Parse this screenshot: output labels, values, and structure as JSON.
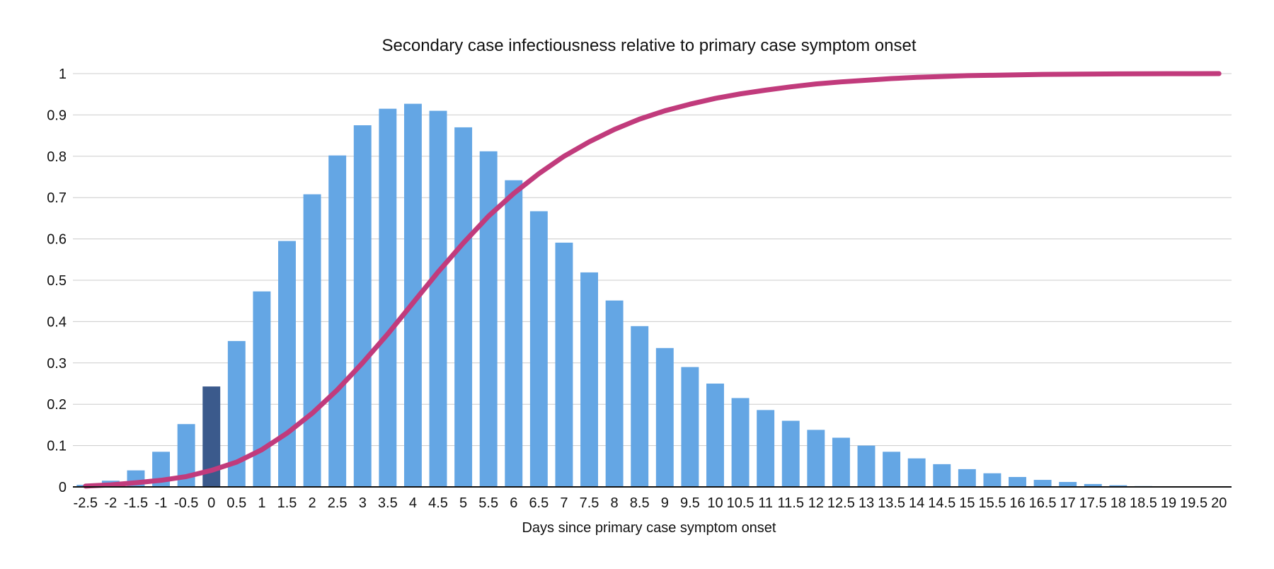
{
  "chart_data": {
    "type": "bar",
    "title": "Secondary case infectiousness relative to primary case symptom onset",
    "xlabel": "Days since primary case symptom onset",
    "ylabel": "",
    "ylim": [
      0,
      1
    ],
    "yticks": [
      0,
      0.1,
      0.2,
      0.3,
      0.4,
      0.5,
      0.6,
      0.7,
      0.8,
      0.9,
      1
    ],
    "ytick_labels": [
      "0",
      "0.1",
      "0.2",
      "0.3",
      "0.4",
      "0.5",
      "0.6",
      "0.7",
      "0.8",
      "0.9",
      "1"
    ],
    "grid": true,
    "legend": "none",
    "categories": [
      "-2.5",
      "-2",
      "-1.5",
      "-1",
      "-0.5",
      "0",
      "0.5",
      "1",
      "1.5",
      "2",
      "2.5",
      "3",
      "3.5",
      "4",
      "4.5",
      "5",
      "5.5",
      "6",
      "6.5",
      "7",
      "7.5",
      "8",
      "8.5",
      "9",
      "9.5",
      "10",
      "10.5",
      "11",
      "11.5",
      "12",
      "12.5",
      "13",
      "13.5",
      "14",
      "14.5",
      "15",
      "15.5",
      "16",
      "16.5",
      "17",
      "17.5",
      "18",
      "18.5",
      "19",
      "19.5",
      "20"
    ],
    "series": [
      {
        "kind": "bar",
        "color": "#64a6e4",
        "highlight_color": "#3b5a8c",
        "highlight_category": "0",
        "values": [
          0.005,
          0.015,
          0.04,
          0.085,
          0.152,
          0.243,
          0.353,
          0.473,
          0.595,
          0.708,
          0.802,
          0.875,
          0.915,
          0.927,
          0.91,
          0.87,
          0.812,
          0.742,
          0.667,
          0.591,
          0.519,
          0.451,
          0.389,
          0.336,
          0.29,
          0.25,
          0.215,
          0.186,
          0.16,
          0.138,
          0.119,
          0.1,
          0.085,
          0.069,
          0.055,
          0.043,
          0.033,
          0.024,
          0.017,
          0.012,
          0.007,
          0.004,
          0.002,
          0.001,
          0.0005,
          0.0002
        ]
      },
      {
        "kind": "line",
        "color": "#c13b7c",
        "values": [
          0.002,
          0.005,
          0.01,
          0.016,
          0.025,
          0.04,
          0.06,
          0.09,
          0.13,
          0.178,
          0.235,
          0.3,
          0.37,
          0.445,
          0.52,
          0.59,
          0.655,
          0.71,
          0.758,
          0.8,
          0.835,
          0.865,
          0.89,
          0.91,
          0.926,
          0.94,
          0.951,
          0.96,
          0.968,
          0.975,
          0.98,
          0.984,
          0.988,
          0.991,
          0.993,
          0.995,
          0.996,
          0.997,
          0.998,
          0.9985,
          0.999,
          0.9993,
          0.9995,
          0.9997,
          0.9998,
          1.0
        ]
      }
    ]
  }
}
